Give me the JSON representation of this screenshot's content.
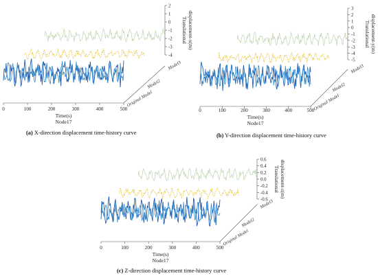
{
  "chart_data": [
    {
      "type": "line",
      "panel_id": "a",
      "caption_letter": "(a)",
      "caption_text": " X-direction displacement time-history curve",
      "xlabel": "Time(s)",
      "xlabel_sub": "Node17",
      "ylabel_line1": "Translational",
      "ylabel_line2": "displacement-x(m)",
      "xlim": [
        0,
        500
      ],
      "x_ticks": [
        "0",
        "100",
        "200",
        "300",
        "400",
        "500"
      ],
      "ylim": [
        -4,
        2
      ],
      "y_ticks": [
        "2",
        "1",
        "0",
        "-1",
        "-2",
        "-3",
        "-4"
      ],
      "series": [
        {
          "name": "Original Model",
          "color": "#1f5fb3",
          "amplitude": 2.1,
          "offset": 0
        },
        {
          "name": "Model2",
          "color": "#e6c02a",
          "amplitude": 0.6,
          "offset": 0
        },
        {
          "name": "Model3",
          "color": "#b7cfa6",
          "amplitude": 0.9,
          "offset": 0.3
        }
      ]
    },
    {
      "type": "line",
      "panel_id": "b",
      "caption_letter": "(b)",
      "caption_text": " Y-direction displacement time-history curve",
      "xlabel": "Time(s)",
      "xlabel_sub": "Node17",
      "ylabel_line1": "Translational",
      "ylabel_line2": "displacement-y(m)",
      "xlim": [
        0,
        500
      ],
      "x_ticks": [
        "0",
        "100",
        "200",
        "300",
        "400",
        "500"
      ],
      "ylim": [
        -5,
        3
      ],
      "y_ticks": [
        "3",
        "2",
        "1",
        "0",
        "-1",
        "-2",
        "-3",
        "-4",
        "-5"
      ],
      "series": [
        {
          "name": "Original Model",
          "color": "#1f5fb3",
          "amplitude": 2.6,
          "offset": 0
        },
        {
          "name": "Model2",
          "color": "#e6c02a",
          "amplitude": 0.8,
          "offset": 0
        },
        {
          "name": "Model3",
          "color": "#b7cfa6",
          "amplitude": 0.6,
          "offset": 0.5
        }
      ]
    },
    {
      "type": "line",
      "panel_id": "c",
      "caption_letter": "(c)",
      "caption_text": " Z-direction displacement time-history curve",
      "xlabel": "Time(s)",
      "xlabel_sub": "Node17",
      "ylabel_line1": "Translational",
      "ylabel_line2": "displacement-z(m)",
      "xlim": [
        0,
        500
      ],
      "x_ticks": [
        "0",
        "100",
        "200",
        "300",
        "400",
        "500"
      ],
      "ylim": [
        -0.6,
        0.6
      ],
      "y_ticks": [
        "0.6",
        "0.4",
        "0.2",
        "0.0",
        "-0.2",
        "-0.4",
        "-0.6"
      ],
      "series": [
        {
          "name": "Original Model",
          "color": "#1f5fb3",
          "amplitude": 0.45,
          "offset": 0
        },
        {
          "name": "Model2",
          "color": "#e6c02a",
          "amplitude": 0.15,
          "offset": 0
        },
        {
          "name": "Model3",
          "color": "#b7cfa6",
          "amplitude": 0.25,
          "offset": 0.05
        }
      ]
    }
  ]
}
